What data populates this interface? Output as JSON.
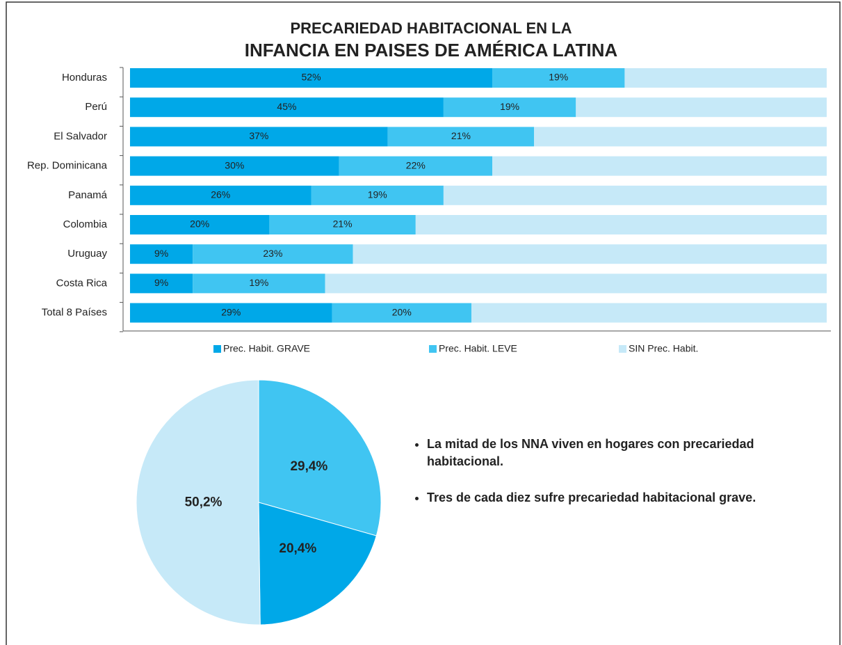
{
  "chart_data": [
    {
      "type": "stacked-bar",
      "title": [
        "PRECARIEDAD HABITACIONAL EN LA",
        "INFANCIA EN PAISES DE AMÉRICA LATINA"
      ],
      "categories": [
        "Honduras",
        "Perú",
        "El Salvador",
        "Rep. Dominicana",
        "Panamá",
        "Colombia",
        "Uruguay",
        "Costa Rica",
        "Total 8 Países"
      ],
      "xlim": [
        0,
        100
      ],
      "legend": "bottom",
      "series": [
        {
          "name": "Prec. Habit. GRAVE",
          "color": "#00a8e8",
          "values": [
            52,
            45,
            37,
            30,
            26,
            20,
            9,
            9,
            29
          ],
          "value_labels": [
            "52%",
            "45%",
            "37%",
            "30%",
            "26%",
            "20%",
            "9%",
            "9%",
            "29%"
          ]
        },
        {
          "name": "Prec. Habit. LEVE",
          "color": "#40c5f2",
          "values": [
            19,
            19,
            21,
            22,
            19,
            21,
            23,
            19,
            20
          ],
          "value_labels": [
            "19%",
            "19%",
            "21%",
            "22%",
            "19%",
            "21%",
            "23%",
            "19%",
            "20%"
          ]
        },
        {
          "name": "SIN Prec. Habit.",
          "color": "#c6e9f8",
          "values": [
            29,
            36,
            42,
            48,
            55,
            59,
            68,
            72,
            51
          ]
        }
      ]
    },
    {
      "type": "pie",
      "values": [
        29.4,
        20.4,
        50.2
      ],
      "value_labels": [
        "29,4%",
        "20,4%",
        "50,2%"
      ],
      "colors": [
        "#40c5f2",
        "#00a8e8",
        "#c6e9f8"
      ],
      "annotations": [
        "La mitad de los NNA viven en hogares con precariedad habitacional.",
        "Tres de cada diez sufre precariedad habitacional grave."
      ]
    }
  ]
}
